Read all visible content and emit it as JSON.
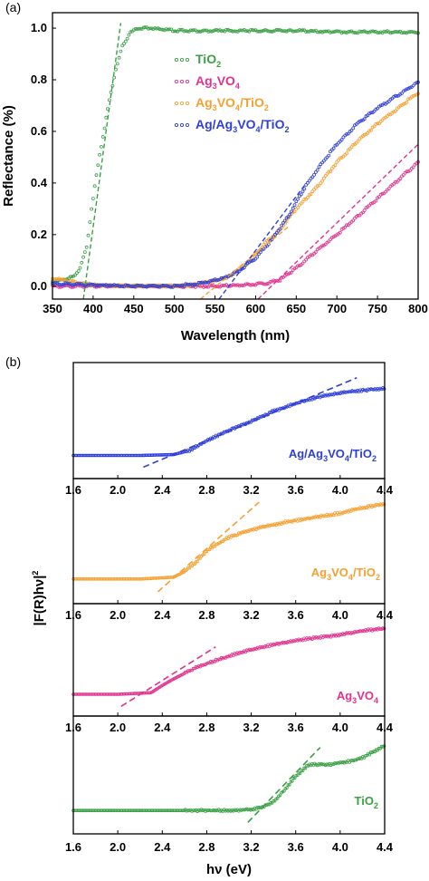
{
  "chart_data": [
    {
      "panel": "(a)",
      "type": "scatter",
      "xlabel": "Wavelength (nm)",
      "ylabel": "Reflectance (%)",
      "xlim": [
        350,
        800
      ],
      "ylim": [
        -0.05,
        1.06
      ],
      "xticks": [
        "350",
        "400",
        "450",
        "500",
        "550",
        "600",
        "650",
        "700",
        "750",
        "800"
      ],
      "xtick_values": [
        350,
        400,
        450,
        500,
        550,
        600,
        650,
        700,
        750,
        800
      ],
      "yticks": [
        "0.0",
        "0.2",
        "0.4",
        "0.6",
        "0.8",
        "1.0"
      ],
      "ytick_values": [
        0,
        0.2,
        0.4,
        0.6,
        0.8,
        1.0
      ],
      "legend_position": "upper-middle",
      "series": [
        {
          "name": "TiO2",
          "display": [
            "TiO",
            "2",
            ""
          ],
          "color": "#3aa045",
          "x": [
            350,
            365,
            378,
            385,
            392,
            398,
            405,
            412,
            420,
            428,
            436,
            445,
            455,
            470,
            500,
            550,
            600,
            650,
            700,
            750,
            800
          ],
          "y": [
            0.02,
            0.025,
            0.04,
            0.08,
            0.15,
            0.3,
            0.45,
            0.58,
            0.72,
            0.84,
            0.93,
            0.98,
            1.0,
            1.0,
            0.99,
            0.99,
            0.99,
            0.99,
            0.985,
            0.985,
            0.985
          ]
        },
        {
          "name": "Ag3VO4",
          "display": [
            "Ag",
            "3",
            "VO",
            "4",
            ""
          ],
          "color": "#e0338f",
          "x": [
            350,
            400,
            450,
            500,
            550,
            590,
            610,
            630,
            650,
            680,
            700,
            725,
            750,
            775,
            800
          ],
          "y": [
            0.0,
            0.0,
            0.0,
            0.0,
            0.0,
            0.005,
            0.01,
            0.025,
            0.07,
            0.15,
            0.2,
            0.27,
            0.34,
            0.41,
            0.48
          ]
        },
        {
          "name": "Ag3VO4/TiO2",
          "display": [
            "Ag",
            "3",
            "VO",
            "4",
            "/TiO",
            "2",
            ""
          ],
          "color": "#f5a030",
          "x": [
            350,
            380,
            400,
            450,
            500,
            520,
            550,
            570,
            590,
            610,
            630,
            650,
            680,
            700,
            725,
            750,
            775,
            800
          ],
          "y": [
            0.03,
            0.015,
            0.005,
            0.0,
            0.0,
            0.005,
            0.02,
            0.04,
            0.09,
            0.16,
            0.22,
            0.3,
            0.4,
            0.48,
            0.56,
            0.63,
            0.69,
            0.75
          ]
        },
        {
          "name": "Ag/Ag3VO4/TiO2",
          "display": [
            "Ag/Ag",
            "3",
            "VO",
            "4",
            "/TiO",
            "2",
            ""
          ],
          "color": "#2e3fd8",
          "x": [
            350,
            400,
            450,
            500,
            530,
            560,
            580,
            600,
            620,
            640,
            660,
            680,
            700,
            725,
            750,
            775,
            800
          ],
          "y": [
            0.01,
            0.005,
            0.0,
            0.0,
            0.01,
            0.03,
            0.06,
            0.11,
            0.18,
            0.27,
            0.38,
            0.47,
            0.55,
            0.63,
            0.69,
            0.74,
            0.79
          ]
        }
      ],
      "tangent_lines": [
        {
          "series": "TiO2",
          "x": [
            388,
            434
          ],
          "y": [
            -0.05,
            1.02
          ]
        },
        {
          "series": "Ag3VO4/TiO2",
          "x": [
            532,
            640
          ],
          "y": [
            -0.05,
            0.23
          ]
        },
        {
          "series": "Ag/Ag3VO4/TiO2",
          "x": [
            555,
            660
          ],
          "y": [
            -0.05,
            0.39
          ]
        },
        {
          "series": "Ag3VO4",
          "x": [
            603,
            800
          ],
          "y": [
            -0.05,
            0.55
          ]
        }
      ]
    },
    {
      "panel": "(b)",
      "type": "scatter",
      "xlabel": "hν (eV)",
      "ylabel": "|F(R)hν|2",
      "ylabel_display": [
        "|F(R)hν|",
        "2"
      ],
      "xlim": [
        1.6,
        4.4
      ],
      "xticks": [
        "1.6",
        "2.0",
        "2.4",
        "2.8",
        "3.2",
        "3.6",
        "4.0",
        "4.4"
      ],
      "xtick_values": [
        1.6,
        2.0,
        2.4,
        2.8,
        3.2,
        3.6,
        4.0,
        4.4
      ],
      "subplots": [
        {
          "name": "Ag/Ag3VO4/TiO2",
          "display": [
            "Ag/Ag",
            "3",
            "VO",
            "4",
            "/TiO",
            "2",
            ""
          ],
          "color": "#2e3fd8",
          "x": [
            1.6,
            2.2,
            2.5,
            2.65,
            2.8,
            3.0,
            3.2,
            3.4,
            3.6,
            3.8,
            4.0,
            4.2,
            4.4
          ],
          "y": [
            0.04,
            0.04,
            0.05,
            0.1,
            0.22,
            0.34,
            0.45,
            0.57,
            0.66,
            0.74,
            0.79,
            0.82,
            0.84
          ],
          "tangent": {
            "x": [
              2.23,
              4.15
            ],
            "y": [
              -0.1,
              0.97
            ]
          }
        },
        {
          "name": "Ag3VO4/TiO2",
          "display": [
            "Ag",
            "3",
            "VO",
            "4",
            "/TiO",
            "2",
            ""
          ],
          "color": "#f5a030",
          "x": [
            1.6,
            2.2,
            2.5,
            2.6,
            2.7,
            2.8,
            3.0,
            3.2,
            3.5,
            3.8,
            4.0,
            4.2,
            4.4
          ],
          "y": [
            0.04,
            0.04,
            0.06,
            0.12,
            0.22,
            0.35,
            0.5,
            0.58,
            0.66,
            0.72,
            0.76,
            0.82,
            0.86
          ],
          "tangent": {
            "x": [
              2.36,
              3.27
            ],
            "y": [
              -0.1,
              0.88
            ]
          }
        },
        {
          "name": "Ag3VO4",
          "display": [
            "Ag",
            "3",
            "VO",
            "4",
            ""
          ],
          "color": "#e0338f",
          "x": [
            1.6,
            2.0,
            2.3,
            2.4,
            2.5,
            2.7,
            2.9,
            3.1,
            3.4,
            3.7,
            4.0,
            4.2,
            4.4
          ],
          "y": [
            0.03,
            0.03,
            0.05,
            0.14,
            0.22,
            0.36,
            0.46,
            0.55,
            0.65,
            0.72,
            0.77,
            0.82,
            0.85
          ],
          "tangent": {
            "x": [
              2.03,
              2.88
            ],
            "y": [
              -0.12,
              0.62
            ]
          }
        },
        {
          "name": "TiO2",
          "display": [
            "TiO",
            "2",
            ""
          ],
          "color": "#3aa045",
          "x": [
            1.6,
            2.5,
            3.0,
            3.2,
            3.3,
            3.4,
            3.5,
            3.6,
            3.7,
            3.75,
            3.9,
            4.1,
            4.2,
            4.4
          ],
          "y": [
            0.04,
            0.04,
            0.04,
            0.05,
            0.08,
            0.14,
            0.28,
            0.44,
            0.56,
            0.58,
            0.58,
            0.62,
            0.66,
            0.8
          ],
          "tangent": {
            "x": [
              3.17,
              3.82
            ],
            "y": [
              -0.1,
              0.78
            ]
          }
        }
      ]
    }
  ]
}
